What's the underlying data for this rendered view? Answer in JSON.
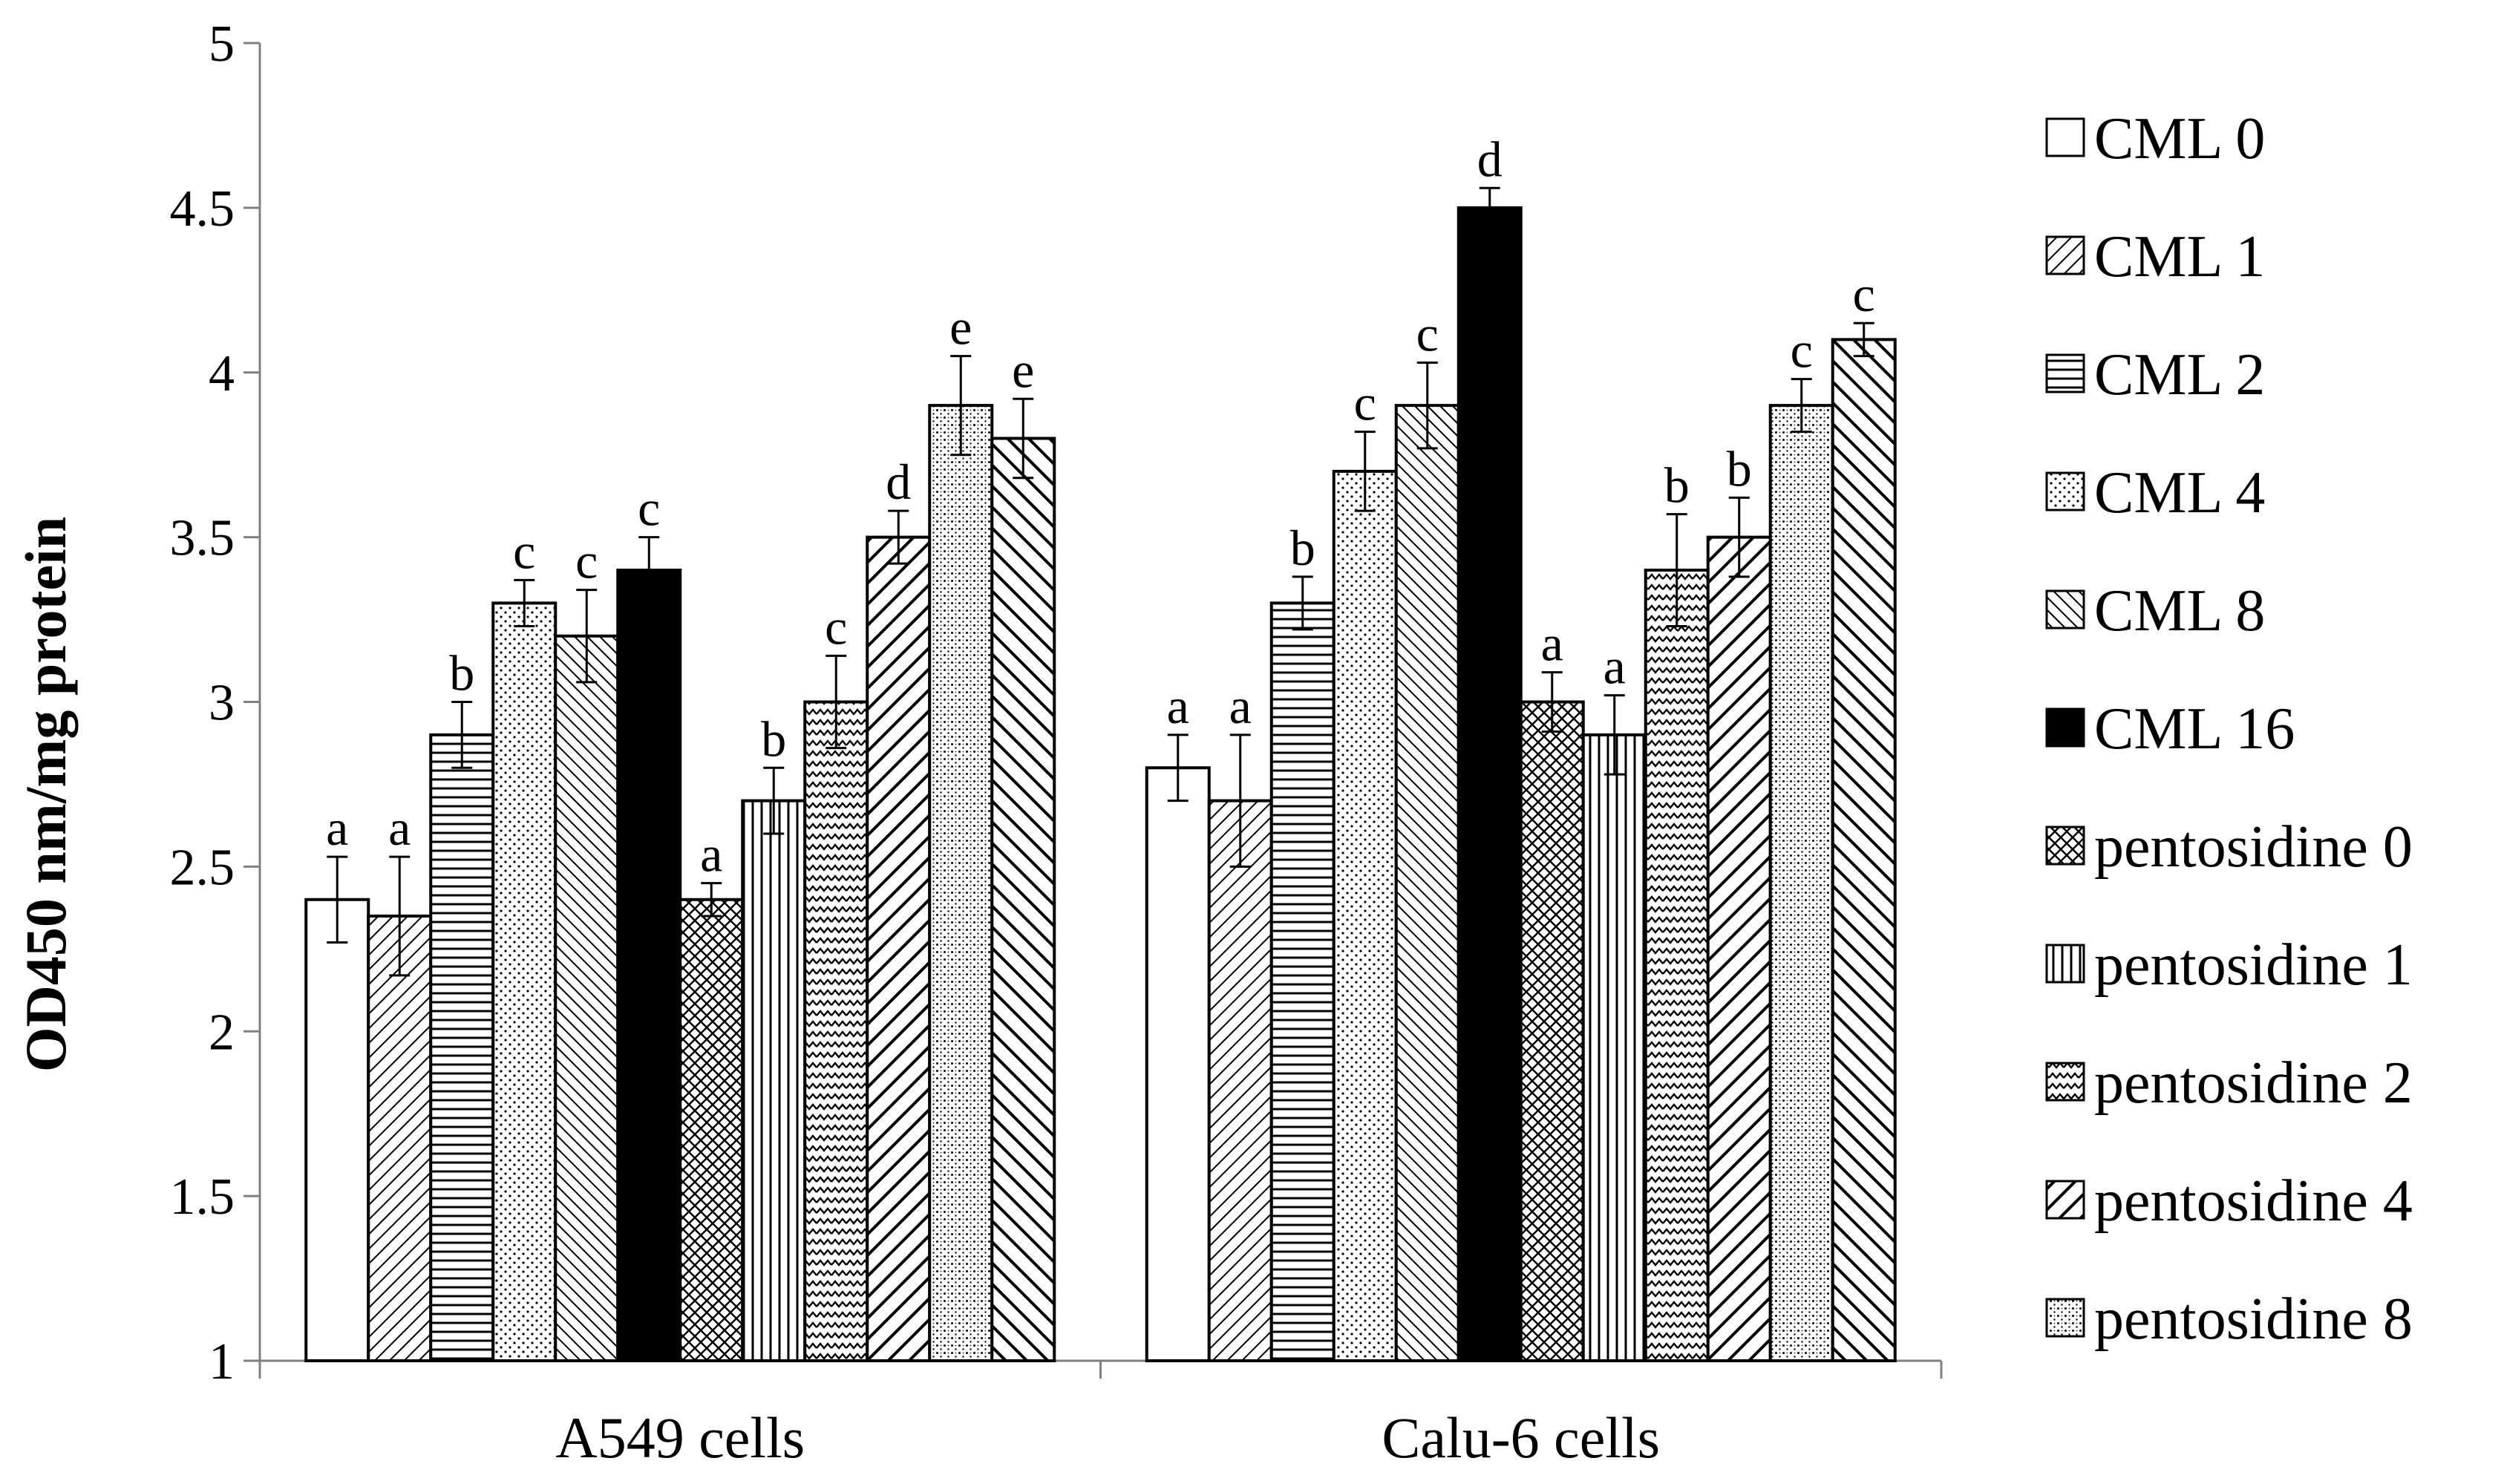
{
  "chart_data": {
    "type": "bar",
    "ylabel": "OD450 nm/mg protein",
    "ylim": [
      1,
      5
    ],
    "yticks": [
      "1",
      "1.5",
      "2",
      "2.5",
      "3",
      "3.5",
      "4",
      "4.5",
      "5"
    ],
    "grid": false,
    "legend_position": "right",
    "categories": [
      "A549 cells",
      "Calu-6 cells"
    ],
    "series": [
      {
        "name": "CML 0",
        "pattern": "white",
        "values": [
          2.4,
          2.8
        ],
        "errors": [
          0.13,
          0.1
        ],
        "sig": [
          "a",
          "a"
        ]
      },
      {
        "name": "CML 1",
        "pattern": "diag-fine",
        "values": [
          2.35,
          2.7
        ],
        "errors": [
          0.18,
          0.2
        ],
        "sig": [
          "a",
          "a"
        ]
      },
      {
        "name": "CML 2",
        "pattern": "horizontal",
        "values": [
          2.9,
          3.3
        ],
        "errors": [
          0.1,
          0.08
        ],
        "sig": [
          "b",
          "b"
        ]
      },
      {
        "name": "CML 4",
        "pattern": "dots",
        "values": [
          3.3,
          3.7
        ],
        "errors": [
          0.07,
          0.12
        ],
        "sig": [
          "c",
          "c"
        ]
      },
      {
        "name": "CML 8",
        "pattern": "diag-back",
        "values": [
          3.2,
          3.9
        ],
        "errors": [
          0.14,
          0.13
        ],
        "sig": [
          "c",
          "c"
        ]
      },
      {
        "name": "CML 16",
        "pattern": "black",
        "values": [
          3.4,
          4.5
        ],
        "errors": [
          0.1,
          0.06
        ],
        "sig": [
          "c",
          "d"
        ]
      },
      {
        "name": "pentosidine 0",
        "pattern": "cross",
        "values": [
          2.4,
          3.0
        ],
        "errors": [
          0.05,
          0.09
        ],
        "sig": [
          "a",
          "a"
        ]
      },
      {
        "name": "pentosidine 1",
        "pattern": "vertical",
        "values": [
          2.7,
          2.9
        ],
        "errors": [
          0.1,
          0.12
        ],
        "sig": [
          "b",
          "a"
        ]
      },
      {
        "name": "pentosidine 2",
        "pattern": "zigzag",
        "values": [
          3.0,
          3.4
        ],
        "errors": [
          0.14,
          0.17
        ],
        "sig": [
          "c",
          "b"
        ]
      },
      {
        "name": "pentosidine 4",
        "pattern": "diag-wide",
        "values": [
          3.5,
          3.5
        ],
        "errors": [
          0.08,
          0.12
        ],
        "sig": [
          "d",
          "b"
        ]
      },
      {
        "name": "pentosidine 8",
        "pattern": "grid-dots",
        "values": [
          3.9,
          3.9
        ],
        "errors": [
          0.15,
          0.08
        ],
        "sig": [
          "e",
          "c"
        ]
      },
      {
        "name": "",
        "pattern": "diag-back-wide",
        "values": [
          3.8,
          4.1
        ],
        "errors": [
          0.12,
          0.05
        ],
        "sig": [
          "e",
          "c"
        ]
      }
    ]
  }
}
